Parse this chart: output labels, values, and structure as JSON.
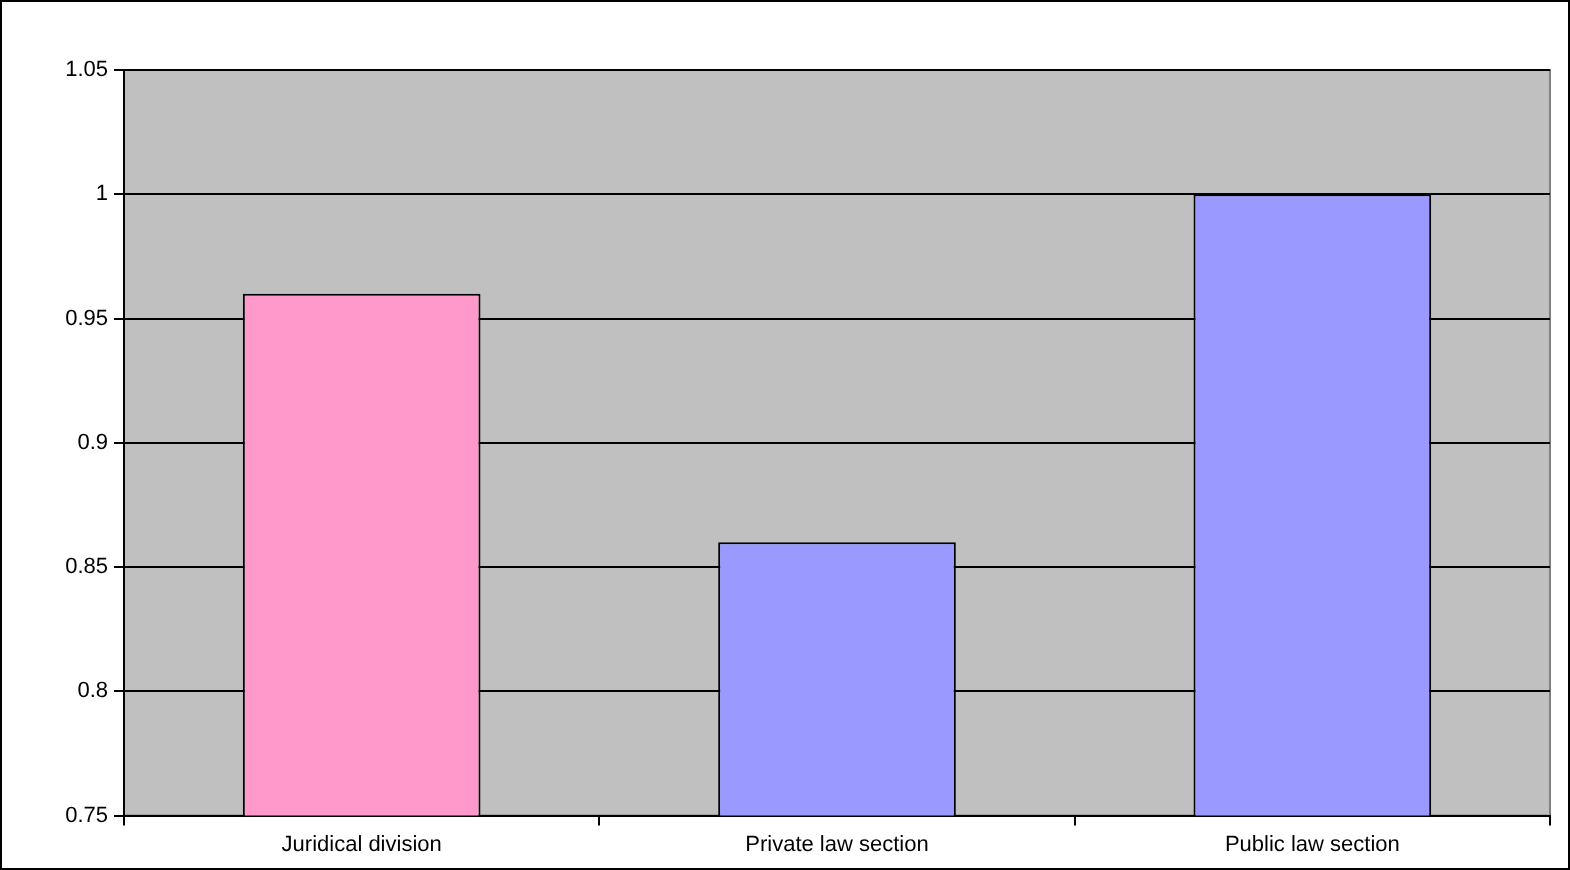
{
  "chart_data": {
    "type": "bar",
    "categories": [
      "Juridical division",
      "Private law section",
      "Public law section"
    ],
    "values": [
      0.96,
      0.86,
      1.0
    ],
    "colors": [
      "#ff99cc",
      "#9999ff",
      "#9999ff"
    ],
    "ylim": [
      0.75,
      1.05
    ],
    "yticks": [
      0.75,
      0.8,
      0.85,
      0.9,
      0.95,
      1,
      1.05
    ],
    "grid": "y",
    "legend": false
  }
}
